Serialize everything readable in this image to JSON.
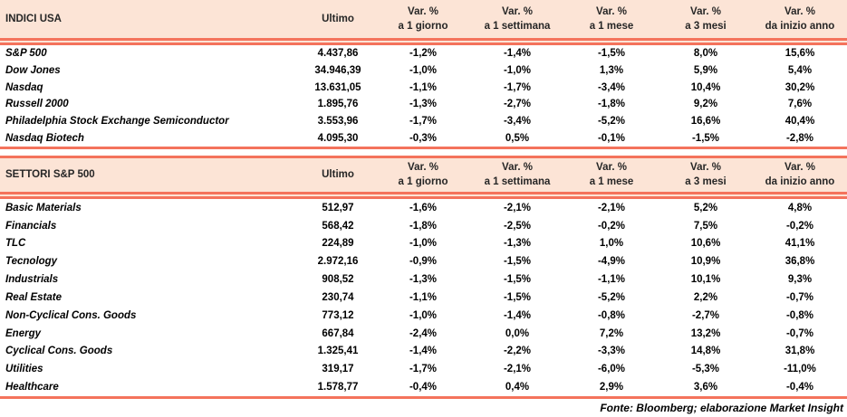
{
  "colors": {
    "header_bg": "#FCE4D6",
    "accent": "#F4735C",
    "header_text": "#262626",
    "body_text": "#000000"
  },
  "columns": {
    "ultimo": "Ultimo",
    "var": "Var. %",
    "periods": [
      "a 1 giorno",
      "a 1 settimana",
      "a 1 mese",
      "a 3 mesi",
      "da inizio anno"
    ]
  },
  "tables": [
    {
      "title": "INDICI USA",
      "rows": [
        {
          "name": "S&P 500",
          "ultimo": "4.437,86",
          "vars": [
            "-1,2%",
            "-1,4%",
            "-1,5%",
            "8,0%",
            "15,6%"
          ]
        },
        {
          "name": "Dow Jones",
          "ultimo": "34.946,39",
          "vars": [
            "-1,0%",
            "-1,0%",
            "1,3%",
            "5,9%",
            "5,4%"
          ]
        },
        {
          "name": "Nasdaq",
          "ultimo": "13.631,05",
          "vars": [
            "-1,1%",
            "-1,7%",
            "-3,4%",
            "10,4%",
            "30,2%"
          ]
        },
        {
          "name": "Russell 2000",
          "ultimo": "1.895,76",
          "vars": [
            "-1,3%",
            "-2,7%",
            "-1,8%",
            "9,2%",
            "7,6%"
          ]
        },
        {
          "name": "Philadelphia Stock Exchange Semiconductor",
          "ultimo": "3.553,96",
          "vars": [
            "-1,7%",
            "-3,4%",
            "-5,2%",
            "16,6%",
            "40,4%"
          ]
        },
        {
          "name": "Nasdaq Biotech",
          "ultimo": "4.095,30",
          "vars": [
            "-0,3%",
            "0,5%",
            "-0,1%",
            "-1,5%",
            "-2,8%"
          ]
        }
      ]
    },
    {
      "title": "SETTORI S&P 500",
      "rows": [
        {
          "name": "Basic Materials",
          "ultimo": "512,97",
          "vars": [
            "-1,6%",
            "-2,1%",
            "-2,1%",
            "5,2%",
            "4,8%"
          ]
        },
        {
          "name": "Financials",
          "ultimo": "568,42",
          "vars": [
            "-1,8%",
            "-2,5%",
            "-0,2%",
            "7,5%",
            "-0,2%"
          ]
        },
        {
          "name": "TLC",
          "ultimo": "224,89",
          "vars": [
            "-1,0%",
            "-1,3%",
            "1,0%",
            "10,6%",
            "41,1%"
          ]
        },
        {
          "name": "Tecnology",
          "ultimo": "2.972,16",
          "vars": [
            "-0,9%",
            "-1,5%",
            "-4,9%",
            "10,9%",
            "36,8%"
          ]
        },
        {
          "name": "Industrials",
          "ultimo": "908,52",
          "vars": [
            "-1,3%",
            "-1,5%",
            "-1,1%",
            "10,1%",
            "9,3%"
          ]
        },
        {
          "name": "Real Estate",
          "ultimo": "230,74",
          "vars": [
            "-1,1%",
            "-1,5%",
            "-5,2%",
            "2,2%",
            "-0,7%"
          ]
        },
        {
          "name": "Non-Cyclical Cons. Goods",
          "ultimo": "773,12",
          "vars": [
            "-1,0%",
            "-1,4%",
            "-0,8%",
            "-2,7%",
            "-0,8%"
          ]
        },
        {
          "name": "Energy",
          "ultimo": "667,84",
          "vars": [
            "-2,4%",
            "0,0%",
            "7,2%",
            "13,2%",
            "-0,7%"
          ]
        },
        {
          "name": "Cyclical Cons. Goods",
          "ultimo": "1.325,41",
          "vars": [
            "-1,4%",
            "-2,2%",
            "-3,3%",
            "14,8%",
            "31,8%"
          ]
        },
        {
          "name": "Utilities",
          "ultimo": "319,17",
          "vars": [
            "-1,7%",
            "-2,1%",
            "-6,0%",
            "-5,3%",
            "-11,0%"
          ]
        },
        {
          "name": "Healthcare",
          "ultimo": "1.578,77",
          "vars": [
            "-0,4%",
            "0,4%",
            "2,9%",
            "3,6%",
            "-0,4%"
          ]
        }
      ]
    }
  ],
  "footer": "Fonte: Bloomberg; elaborazione Market Insight"
}
